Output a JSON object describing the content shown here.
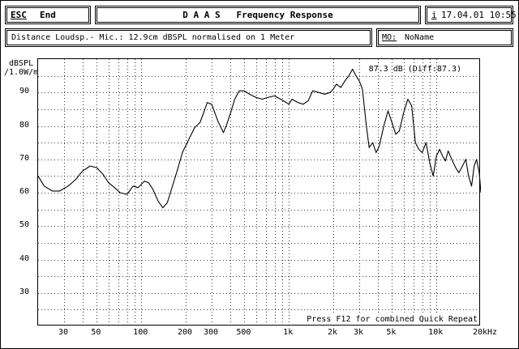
{
  "header": {
    "esc_key": "ESC",
    "esc_action": "End",
    "title": "D A A S   Frequency Response",
    "info_key": "i",
    "date_time": "17.04.01 10:55"
  },
  "subheader": {
    "description": "Distance Loudsp.- Mic.: 12.9cm dBSPL normalised on 1 Meter",
    "mo_label": "MO:",
    "mo_value": "NoName"
  },
  "plot": {
    "readout": "87.3 dB (Diff:87.3)",
    "footer_hint": "Press F12 for combined Quick Repeat"
  },
  "chart_data": {
    "type": "line",
    "ylabel": "dBSPL\n/1.0W/m",
    "ylabel_line1": "dBSPL",
    "ylabel_line2": "/1.0W/m",
    "xscale": "log",
    "xlim": [
      20,
      20000
    ],
    "ylim": [
      20,
      100
    ],
    "grid": true,
    "yticks": [
      30,
      40,
      50,
      60,
      70,
      80,
      90
    ],
    "xtick_labels": [
      "30",
      "50",
      "100",
      "200",
      "300",
      "500",
      "1k",
      "2k",
      "3k",
      "5k",
      "10k",
      "20kHz"
    ],
    "xtick_values": [
      30,
      50,
      100,
      200,
      300,
      500,
      1000,
      2000,
      3000,
      5000,
      10000,
      20000
    ],
    "x": [
      20,
      22,
      25,
      28,
      32,
      36,
      40,
      45,
      50,
      55,
      60,
      66,
      72,
      80,
      88,
      95,
      100,
      105,
      112,
      120,
      130,
      140,
      150,
      160,
      175,
      190,
      210,
      230,
      250,
      265,
      280,
      300,
      330,
      360,
      380,
      400,
      430,
      460,
      500,
      540,
      600,
      660,
      720,
      800,
      880,
      960,
      1000,
      1050,
      1150,
      1250,
      1350,
      1450,
      1600,
      1750,
      1900,
      2000,
      2100,
      2250,
      2400,
      2550,
      2700,
      2850,
      3000,
      3150,
      3350,
      3500,
      3700,
      3900,
      4100,
      4400,
      4700,
      5000,
      5300,
      5600,
      6000,
      6400,
      6800,
      7200,
      7600,
      8000,
      8500,
      9000,
      9500,
      10000,
      10500,
      11000,
      11500,
      12000,
      12700,
      13500,
      14200,
      15000,
      15800,
      16500,
      17300,
      18000,
      18700,
      19500,
      20000
    ],
    "y": [
      65,
      62,
      60.5,
      60.5,
      62,
      64,
      66.5,
      68,
      67.5,
      65.5,
      63,
      61.5,
      60,
      59.5,
      62,
      61.5,
      62.5,
      63.5,
      63,
      61,
      57.5,
      55.5,
      57,
      61,
      66.5,
      72,
      76,
      79.5,
      81,
      84,
      87,
      86.5,
      81.5,
      78,
      80.5,
      83.5,
      88,
      90.5,
      90.5,
      89.5,
      88.5,
      88,
      88.5,
      89,
      88,
      87,
      86.5,
      88,
      87,
      86.5,
      87.5,
      90.5,
      90,
      89.5,
      90,
      91,
      92.5,
      91.5,
      93.5,
      95,
      97,
      95,
      93.5,
      91,
      80,
      73.5,
      75,
      72,
      74,
      80,
      84.5,
      81,
      77.5,
      78.5,
      84,
      88,
      86,
      75,
      73,
      72,
      75,
      69,
      65,
      71,
      73,
      71,
      69.5,
      72.5,
      70,
      67.5,
      66,
      68,
      70,
      65,
      62,
      68,
      70,
      66,
      60
    ]
  }
}
